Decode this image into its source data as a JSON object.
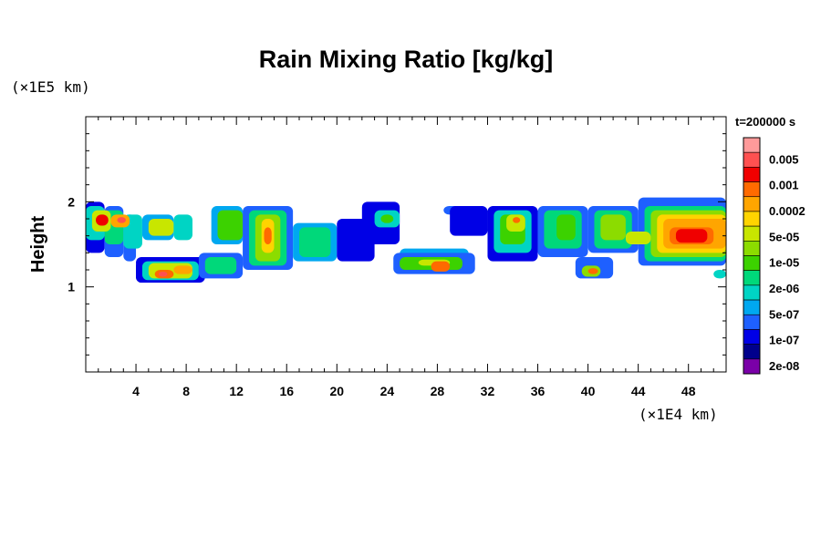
{
  "chart_data": {
    "type": "heatmap",
    "title": "Rain Mixing Ratio [kg/kg]",
    "ylabel": "Height",
    "x_unit_label": "(×1E4 km)",
    "y_unit_label": "(×1E5 km)",
    "time_label": "t=200000 s",
    "xlim": [
      0,
      51
    ],
    "ylim": [
      0,
      3
    ],
    "x_ticks": [
      "4",
      "8",
      "12",
      "16",
      "20",
      "24",
      "28",
      "32",
      "36",
      "40",
      "44",
      "48"
    ],
    "x_tick_values": [
      4,
      8,
      12,
      16,
      20,
      24,
      28,
      32,
      36,
      40,
      44,
      48
    ],
    "y_ticks": [
      "1",
      "2"
    ],
    "y_tick_values": [
      1,
      2
    ],
    "colorbar": {
      "levels": [
        "0.005",
        "0.001",
        "0.0002",
        "5e-05",
        "1e-05",
        "2e-06",
        "5e-07",
        "1e-07",
        "2e-08"
      ],
      "colors": [
        "#ff9a9a",
        "#ff5050",
        "#f00000",
        "#ff6a00",
        "#ffa500",
        "#ffd400",
        "#c8e600",
        "#8cdc00",
        "#3cd200",
        "#00d87a",
        "#00d4c4",
        "#00a8f0",
        "#1e60ff",
        "#0000e6",
        "#00008c",
        "#7a00a8"
      ]
    },
    "cells": [
      [
        0.0,
        1.4,
        1.5,
        2.0,
        2
      ],
      [
        1.5,
        1.35,
        3.0,
        1.95,
        3
      ],
      [
        3.0,
        1.3,
        4.0,
        1.85,
        3
      ],
      [
        4.0,
        1.05,
        5.0,
        1.3,
        1
      ],
      [
        0.0,
        1.55,
        1.5,
        1.95,
        5
      ],
      [
        1.5,
        1.5,
        3.0,
        1.9,
        6
      ],
      [
        3.0,
        1.45,
        4.5,
        1.85,
        5
      ],
      [
        4.5,
        1.55,
        7.0,
        1.85,
        4
      ],
      [
        7.0,
        1.55,
        8.5,
        1.85,
        5
      ],
      [
        0.5,
        1.65,
        2.0,
        1.9,
        9
      ],
      [
        2.0,
        1.7,
        3.5,
        1.85,
        11
      ],
      [
        5.0,
        1.6,
        7.0,
        1.8,
        9
      ],
      [
        0.8,
        1.72,
        1.8,
        1.85,
        13
      ],
      [
        2.5,
        1.75,
        3.2,
        1.82,
        14
      ],
      [
        4.0,
        1.05,
        9.5,
        1.35,
        2
      ],
      [
        4.5,
        1.08,
        9.0,
        1.3,
        5
      ],
      [
        5.0,
        1.1,
        8.5,
        1.28,
        9
      ],
      [
        5.5,
        1.1,
        7.0,
        1.2,
        12
      ],
      [
        7.0,
        1.15,
        8.5,
        1.25,
        11
      ],
      [
        5.8,
        1.12,
        6.5,
        1.18,
        14
      ],
      [
        9.0,
        1.1,
        12.5,
        1.4,
        3
      ],
      [
        9.5,
        1.15,
        12.0,
        1.35,
        6
      ],
      [
        10.0,
        1.5,
        12.5,
        1.95,
        4
      ],
      [
        10.5,
        1.55,
        12.5,
        1.9,
        7
      ],
      [
        12.5,
        1.2,
        16.5,
        1.95,
        3
      ],
      [
        13.0,
        1.25,
        16.0,
        1.9,
        6
      ],
      [
        13.5,
        1.3,
        15.5,
        1.85,
        8
      ],
      [
        14.0,
        1.4,
        15.0,
        1.8,
        10
      ],
      [
        14.2,
        1.5,
        14.8,
        1.7,
        12
      ],
      [
        16.5,
        1.3,
        20.0,
        1.75,
        4
      ],
      [
        17.0,
        1.35,
        19.5,
        1.7,
        6
      ],
      [
        20.0,
        1.3,
        23.0,
        1.8,
        2
      ],
      [
        22.0,
        1.5,
        25.0,
        2.0,
        2
      ],
      [
        23.0,
        1.7,
        25.0,
        1.9,
        5
      ],
      [
        23.5,
        1.75,
        24.5,
        1.85,
        7
      ],
      [
        25.0,
        1.3,
        30.5,
        1.45,
        4
      ],
      [
        24.5,
        1.15,
        31.0,
        1.4,
        3
      ],
      [
        25.0,
        1.2,
        30.0,
        1.35,
        7
      ],
      [
        26.5,
        1.25,
        29.0,
        1.32,
        9
      ],
      [
        27.5,
        1.18,
        29.0,
        1.3,
        12
      ],
      [
        28.5,
        1.85,
        30.5,
        1.95,
        3
      ],
      [
        29.0,
        1.6,
        32.0,
        1.95,
        2
      ],
      [
        32.0,
        1.3,
        36.0,
        1.95,
        2
      ],
      [
        32.5,
        1.4,
        35.5,
        1.9,
        5
      ],
      [
        33.0,
        1.5,
        35.0,
        1.85,
        7
      ],
      [
        33.5,
        1.65,
        35.0,
        1.85,
        9
      ],
      [
        34.0,
        1.75,
        34.6,
        1.82,
        12
      ],
      [
        36.0,
        1.35,
        40.0,
        1.95,
        3
      ],
      [
        36.5,
        1.45,
        39.5,
        1.9,
        6
      ],
      [
        37.5,
        1.55,
        39.0,
        1.85,
        7
      ],
      [
        39.0,
        1.1,
        42.0,
        1.35,
        3
      ],
      [
        39.5,
        1.12,
        41.0,
        1.25,
        8
      ],
      [
        40.0,
        1.15,
        40.8,
        1.22,
        12
      ],
      [
        40.0,
        1.4,
        44.0,
        1.95,
        3
      ],
      [
        40.5,
        1.45,
        43.5,
        1.9,
        6
      ],
      [
        41.0,
        1.55,
        43.0,
        1.85,
        8
      ],
      [
        44.0,
        1.25,
        51.0,
        2.05,
        3
      ],
      [
        44.5,
        1.3,
        51.0,
        1.95,
        6
      ],
      [
        45.0,
        1.35,
        51.0,
        1.9,
        8
      ],
      [
        45.5,
        1.4,
        51.0,
        1.85,
        10
      ],
      [
        46.0,
        1.45,
        51.0,
        1.8,
        11
      ],
      [
        46.5,
        1.5,
        50.0,
        1.7,
        12
      ],
      [
        47.0,
        1.52,
        49.5,
        1.68,
        13
      ],
      [
        43.0,
        1.5,
        45.0,
        1.65,
        9
      ],
      [
        50.0,
        1.1,
        51.0,
        1.2,
        5
      ]
    ]
  }
}
